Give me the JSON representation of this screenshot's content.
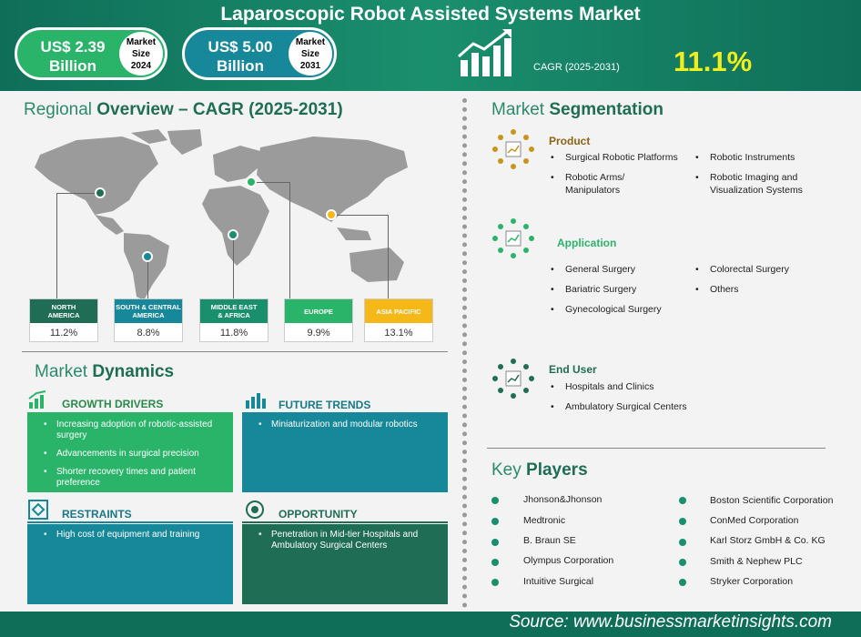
{
  "header": {
    "title": "Laparoscopic Robot Assisted Systems Market",
    "size_2024": {
      "value": "US$ 2.39",
      "unit": "Billion",
      "label_line1": "Market",
      "label_line2": "Size",
      "year": "2024"
    },
    "size_2031": {
      "value": "US$ 5.00",
      "unit": "Billion",
      "label_line1": "Market",
      "label_line2": "Size",
      "year": "2031"
    },
    "cagr_label": "CAGR (2025-2031)",
    "cagr_value": "11.1%"
  },
  "regional": {
    "title_prefix": "Regional ",
    "title_bold": "Overview – CAGR (2025-2031)",
    "regions": [
      {
        "line1": "NORTH",
        "line2": "AMERICA",
        "value": "11.2%",
        "color": "#1f6d55"
      },
      {
        "line1": "SOUTH & CENTRAL",
        "line2": "AMERICA",
        "value": "8.8%",
        "color": "#17889a"
      },
      {
        "line1": "MIDDLE EAST",
        "line2": "& AFRICA",
        "value": "11.8%",
        "color": "#1a8f6e"
      },
      {
        "line1": "EUROPE",
        "line2": "",
        "value": "9.9%",
        "color": "#2ab46a"
      },
      {
        "line1": "ASIA PACIFIC",
        "line2": "",
        "value": "13.1%",
        "color": "#f5b818"
      }
    ]
  },
  "dynamics": {
    "title_prefix": "Market ",
    "title_bold": "Dynamics",
    "growth": {
      "head": "GROWTH DRIVERS",
      "items": [
        "Increasing adoption of robotic-assisted surgery",
        "Advancements in surgical precision",
        "Shorter recovery times and patient preference"
      ]
    },
    "trends": {
      "head": "FUTURE TRENDS",
      "items": [
        "Miniaturization and modular robotics"
      ]
    },
    "restraints": {
      "head": "RESTRAINTS",
      "items": [
        "High cost of equipment and training"
      ]
    },
    "opportunity": {
      "head": "OPPORTUNITY",
      "items": [
        "Penetration in Mid-tier Hospitals and Ambulatory Surgical Centers"
      ]
    }
  },
  "segmentation": {
    "title_prefix": "Market ",
    "title_bold": "Segmentation",
    "product": {
      "head": "Product",
      "col1": [
        "Surgical Robotic Platforms",
        "Robotic Arms/ Manipulators"
      ],
      "col2": [
        "Robotic Instruments",
        "Robotic Imaging and Visualization Systems"
      ]
    },
    "application": {
      "head": "Application",
      "col1": [
        "General Surgery",
        "Bariatric Surgery",
        "Gynecological Surgery"
      ],
      "col2": [
        "Colorectal Surgery",
        "Others"
      ]
    },
    "end_user": {
      "head": "End User",
      "col1": [
        "Hospitals and Clinics",
        "Ambulatory Surgical Centers"
      ]
    }
  },
  "players": {
    "title_prefix": "Key ",
    "title_bold": "Players",
    "col1": [
      "Jhonson&Jhonson",
      "Medtronic",
      "B. Braun SE",
      "Olympus Corporation",
      "Intuitive Surgical"
    ],
    "col2": [
      "Boston Scientific Corporation",
      "ConMed Corporation",
      "Karl Storz GmbH & Co. KG",
      "Smith & Nephew PLC",
      "Stryker Corporation"
    ]
  },
  "footer": {
    "source": "Source:  www.businessmarketinsights.com"
  }
}
